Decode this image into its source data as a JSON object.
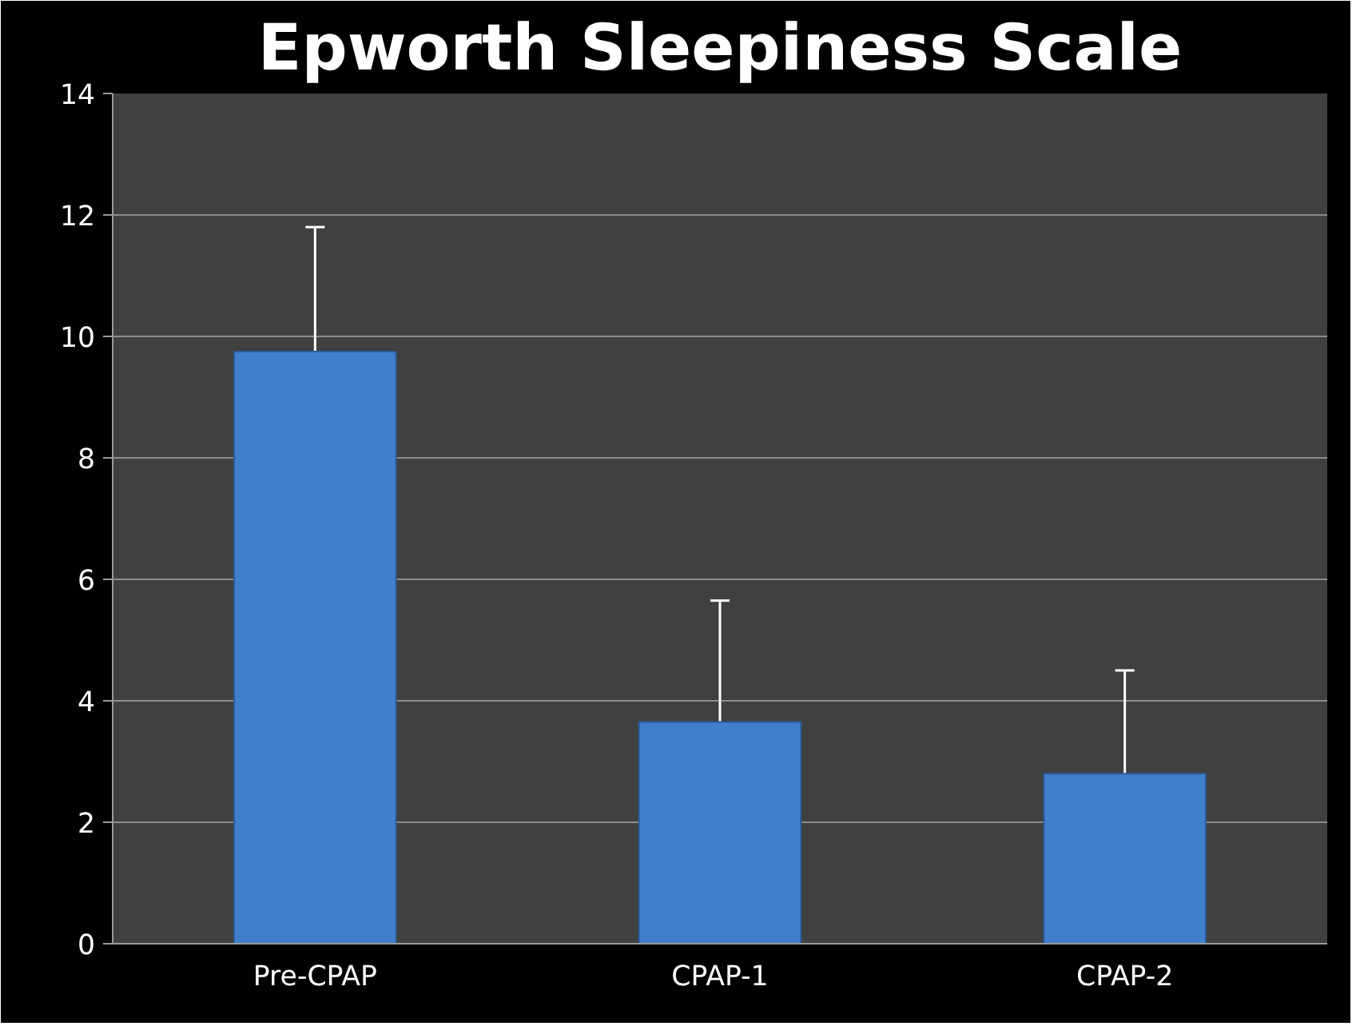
{
  "chart_data": {
    "type": "bar",
    "title": "Epworth Sleepiness Scale",
    "categories": [
      "Pre-CPAP",
      "CPAP-1",
      "CPAP-2"
    ],
    "values": [
      9.75,
      3.65,
      2.8
    ],
    "errors": [
      [
        9.75,
        11.8
      ],
      [
        3.65,
        5.65
      ],
      [
        2.8,
        4.5
      ]
    ],
    "color": "#3f7fcc",
    "ylim": [
      0,
      14
    ],
    "yticks": [
      0,
      2,
      4,
      6,
      8,
      10,
      12,
      14
    ],
    "grid": "y"
  }
}
